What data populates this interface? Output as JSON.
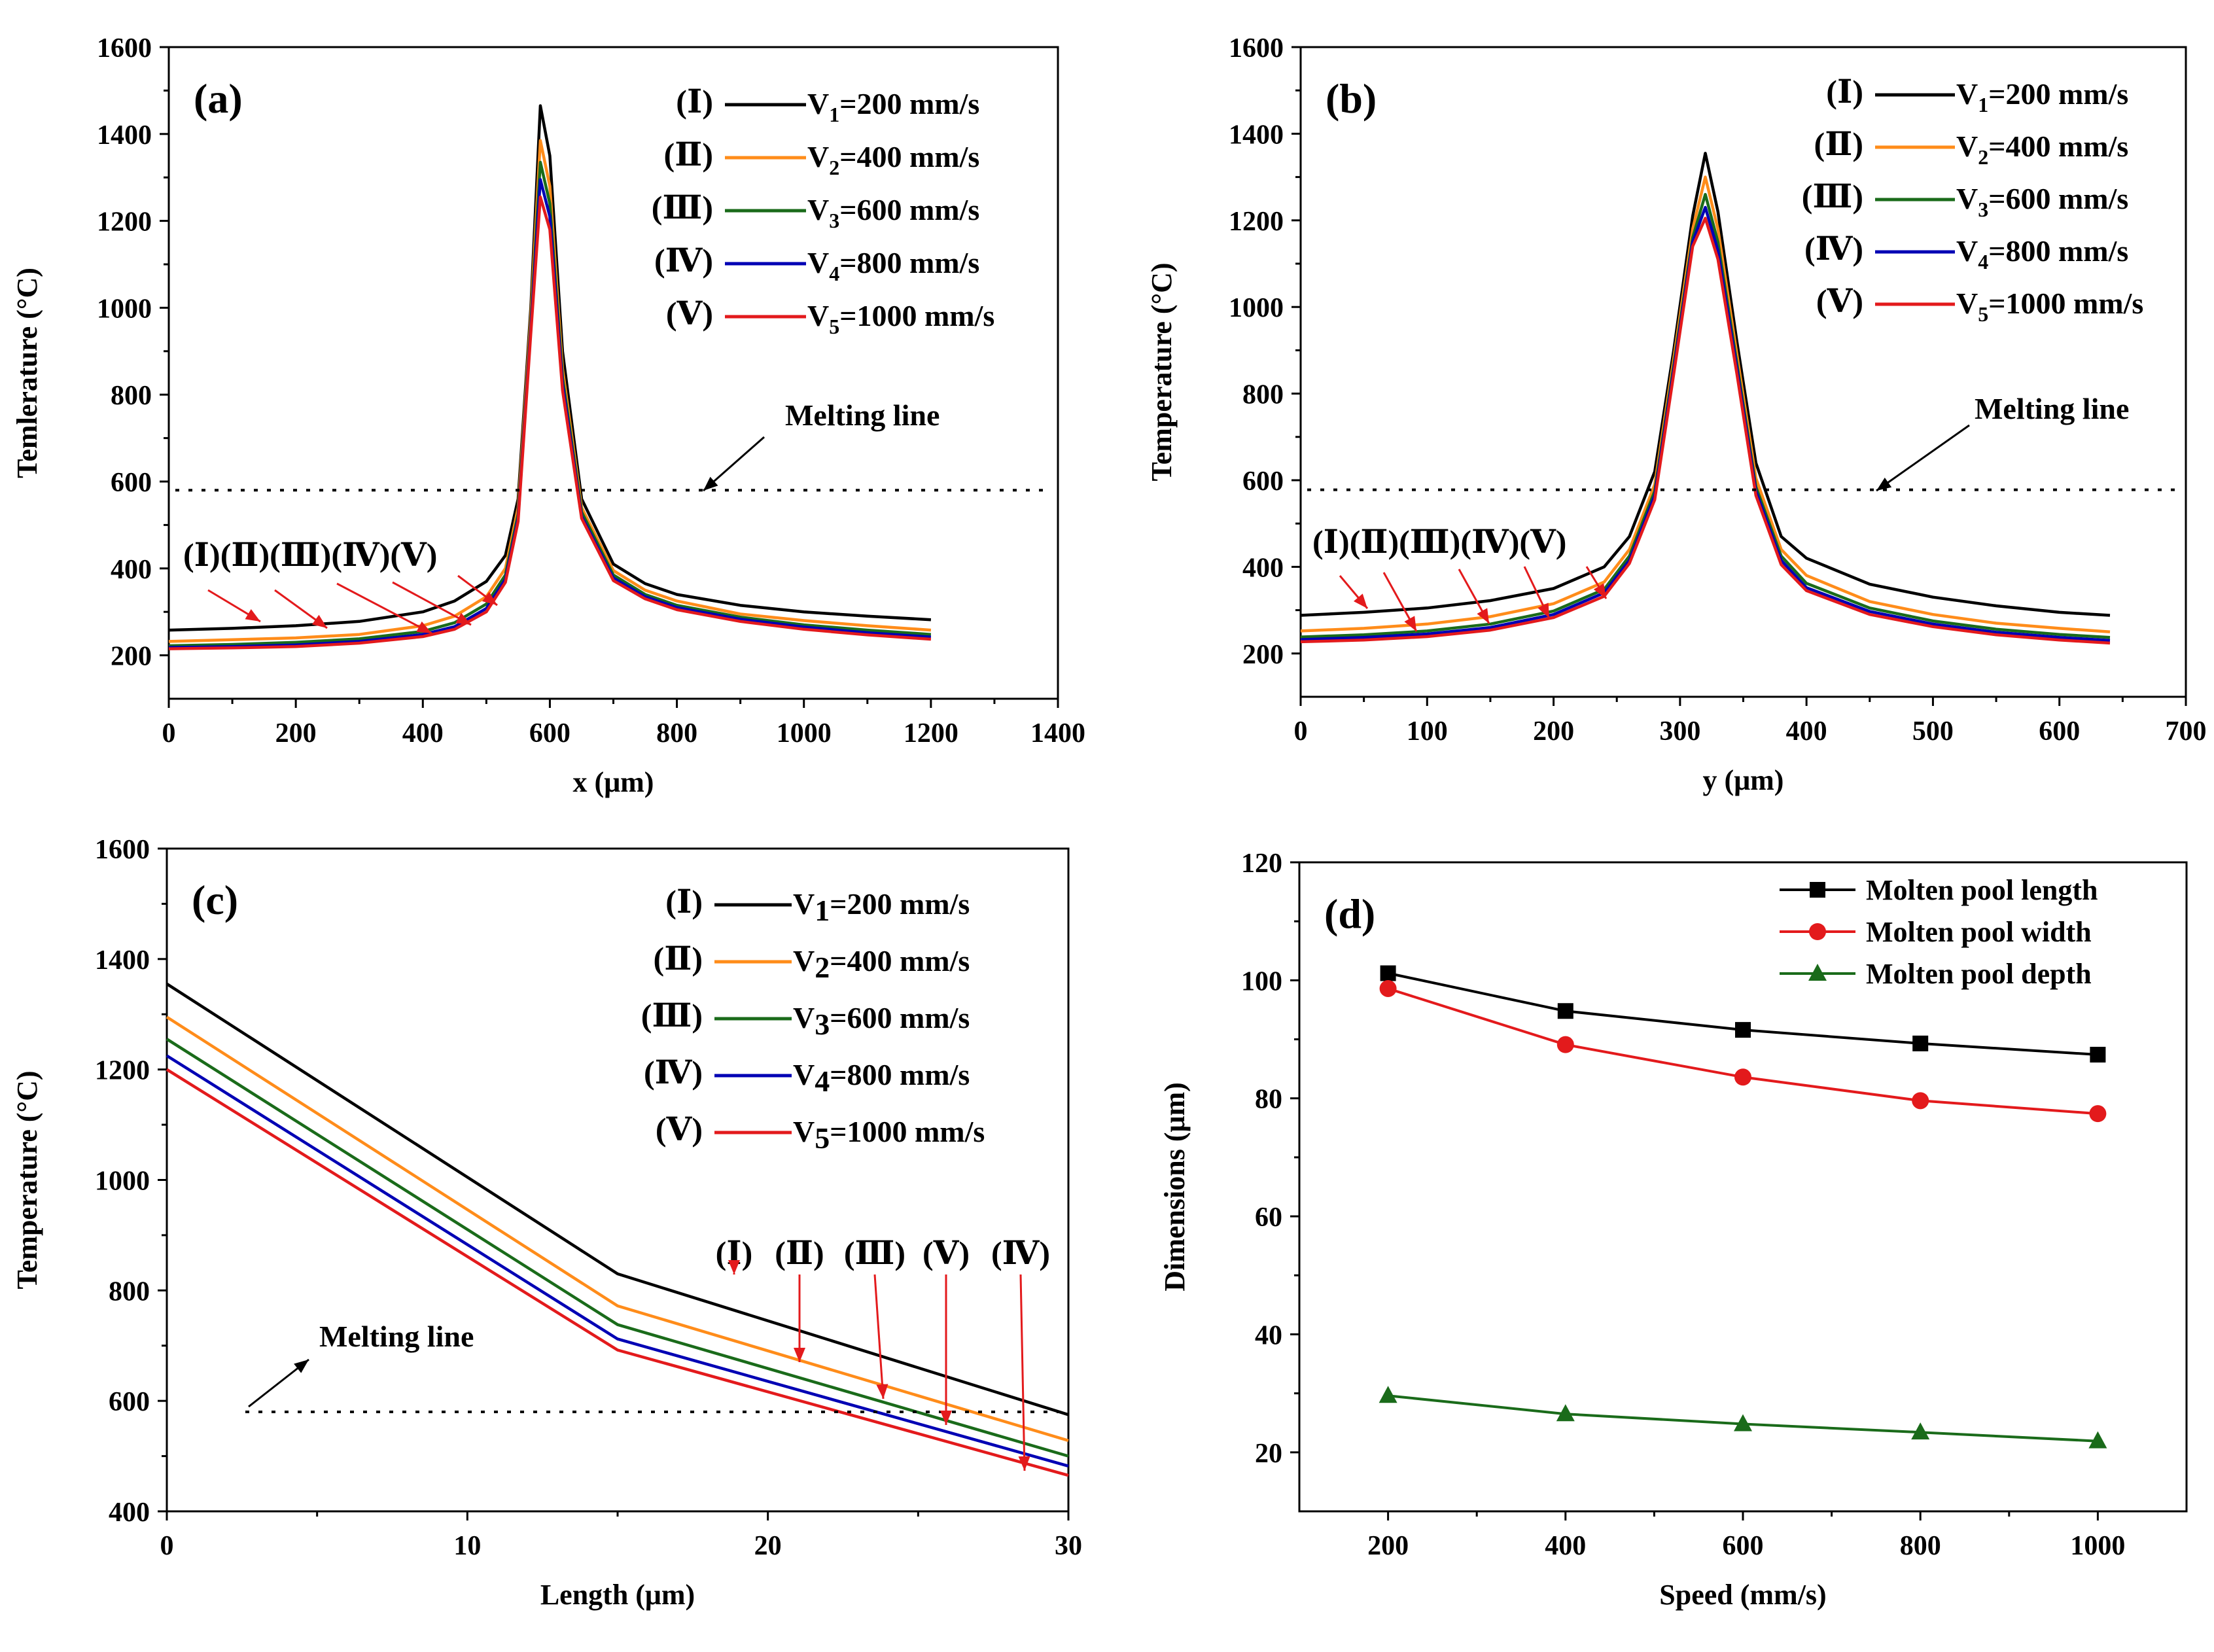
{
  "colors": {
    "V1": "#000000",
    "V2": "#ff8c1a",
    "V3": "#1a6b1a",
    "V4": "#0000b4",
    "V5": "#e31a1c",
    "annotation_arrow": "#e31a1c",
    "label_brown": "#5a1a0a",
    "length_series": "#000000",
    "width_series": "#e31a1c",
    "depth_series": "#1a6b1a"
  },
  "chart_data": [
    {
      "id": "a",
      "type": "line",
      "panel_label": "(a)",
      "xlabel": "x (μm)",
      "ylabel": "Temlerature (°C)",
      "xlim": [
        0,
        1400
      ],
      "ylim": [
        100,
        1600
      ],
      "xticks": [
        0,
        200,
        400,
        600,
        800,
        1000,
        1200,
        1400
      ],
      "yticks": [
        200,
        400,
        600,
        800,
        1000,
        1200,
        1400,
        1600
      ],
      "legend": [
        {
          "roman": "(Ⅰ)",
          "sym": "V",
          "sub": "1",
          "rest": "=200 mm/s",
          "color_key": "V1"
        },
        {
          "roman": "(Ⅱ)",
          "sym": "V",
          "sub": "2",
          "rest": "=400 mm/s",
          "color_key": "V2"
        },
        {
          "roman": "(Ⅲ)",
          "sym": "V",
          "sub": "3",
          "rest": "=600 mm/s",
          "color_key": "V3"
        },
        {
          "roman": "(Ⅳ)",
          "sym": "V",
          "sub": "4",
          "rest": "=800 mm/s",
          "color_key": "V4"
        },
        {
          "roman": "(Ⅴ)",
          "sym": "V",
          "sub": "5",
          "rest": "=1000 mm/s",
          "color_key": "V5"
        }
      ],
      "melting_line": {
        "label": "Melting line",
        "y": 580
      },
      "annotation_labels": "(Ⅰ)(Ⅱ)(Ⅲ)(Ⅳ)(Ⅴ)",
      "series": [
        {
          "color_key": "V1",
          "x": [
            0,
            100,
            200,
            300,
            400,
            450,
            500,
            530,
            550,
            570,
            585,
            600,
            620,
            650,
            700,
            750,
            800,
            900,
            1000,
            1100,
            1200
          ],
          "y": [
            258,
            262,
            268,
            278,
            300,
            325,
            370,
            430,
            560,
            1000,
            1465,
            1350,
            900,
            560,
            410,
            365,
            340,
            315,
            300,
            290,
            282
          ]
        },
        {
          "color_key": "V2",
          "x": [
            0,
            100,
            200,
            300,
            400,
            450,
            500,
            530,
            550,
            570,
            585,
            600,
            620,
            650,
            700,
            750,
            800,
            900,
            1000,
            1100,
            1200
          ],
          "y": [
            232,
            236,
            240,
            248,
            268,
            290,
            335,
            400,
            540,
            980,
            1385,
            1280,
            860,
            540,
            395,
            350,
            325,
            295,
            280,
            268,
            258
          ]
        },
        {
          "color_key": "V3",
          "x": [
            0,
            100,
            200,
            300,
            400,
            450,
            500,
            530,
            550,
            570,
            585,
            600,
            620,
            650,
            700,
            750,
            800,
            900,
            1000,
            1100,
            1200
          ],
          "y": [
            222,
            225,
            230,
            238,
            255,
            275,
            318,
            385,
            525,
            960,
            1335,
            1240,
            840,
            530,
            385,
            340,
            315,
            288,
            270,
            258,
            248
          ]
        },
        {
          "color_key": "V4",
          "x": [
            0,
            100,
            200,
            300,
            400,
            450,
            500,
            530,
            550,
            570,
            585,
            600,
            620,
            650,
            700,
            750,
            800,
            900,
            1000,
            1100,
            1200
          ],
          "y": [
            218,
            220,
            224,
            232,
            248,
            266,
            308,
            375,
            515,
            950,
            1295,
            1210,
            825,
            520,
            378,
            335,
            310,
            283,
            265,
            252,
            242
          ]
        },
        {
          "color_key": "V5",
          "x": [
            0,
            100,
            200,
            300,
            400,
            450,
            500,
            530,
            550,
            570,
            585,
            600,
            620,
            650,
            700,
            750,
            800,
            900,
            1000,
            1100,
            1200
          ],
          "y": [
            215,
            217,
            220,
            228,
            243,
            260,
            300,
            368,
            508,
            940,
            1255,
            1180,
            810,
            515,
            372,
            330,
            305,
            278,
            260,
            247,
            237
          ]
        }
      ]
    },
    {
      "id": "b",
      "type": "line",
      "panel_label": "(b)",
      "xlabel": "y (μm)",
      "ylabel": "Temperature (°C)",
      "xlim": [
        0,
        700
      ],
      "ylim": [
        100,
        1600
      ],
      "xticks": [
        0,
        100,
        200,
        300,
        400,
        500,
        600,
        700
      ],
      "yticks": [
        200,
        400,
        600,
        800,
        1000,
        1200,
        1400,
        1600
      ],
      "legend": [
        {
          "roman": "(Ⅰ)",
          "sym": "V",
          "sub": "1",
          "rest": "=200 mm/s",
          "color_key": "V1"
        },
        {
          "roman": "(Ⅱ)",
          "sym": "V",
          "sub": "2",
          "rest": "=400 mm/s",
          "color_key": "V2"
        },
        {
          "roman": "(Ⅲ)",
          "sym": "V",
          "sub": "3",
          "rest": "=600 mm/s",
          "color_key": "V3"
        },
        {
          "roman": "(Ⅳ)",
          "sym": "V",
          "sub": "4",
          "rest": "=800 mm/s",
          "color_key": "V4"
        },
        {
          "roman": "(Ⅴ)",
          "sym": "V",
          "sub": "5",
          "rest": "=1000 mm/s",
          "color_key": "V5"
        }
      ],
      "melting_line": {
        "label": "Melting line",
        "y": 578
      },
      "annotation_labels": "(Ⅰ)(Ⅱ)(Ⅲ)(Ⅳ)(Ⅴ)",
      "series": [
        {
          "color_key": "V1",
          "x": [
            0,
            50,
            100,
            150,
            200,
            240,
            260,
            280,
            295,
            310,
            320,
            330,
            345,
            360,
            380,
            400,
            450,
            500,
            550,
            600,
            640
          ],
          "y": [
            288,
            295,
            305,
            322,
            350,
            400,
            470,
            620,
            900,
            1210,
            1355,
            1220,
            920,
            640,
            470,
            420,
            360,
            330,
            310,
            295,
            288
          ]
        },
        {
          "color_key": "V2",
          "x": [
            0,
            50,
            100,
            150,
            200,
            240,
            260,
            280,
            295,
            310,
            320,
            330,
            345,
            360,
            380,
            400,
            450,
            500,
            550,
            600,
            640
          ],
          "y": [
            252,
            258,
            268,
            285,
            315,
            365,
            440,
            590,
            880,
            1180,
            1300,
            1180,
            890,
            605,
            440,
            380,
            320,
            290,
            270,
            258,
            250
          ]
        },
        {
          "color_key": "V3",
          "x": [
            0,
            50,
            100,
            150,
            200,
            240,
            260,
            280,
            295,
            310,
            320,
            330,
            345,
            360,
            380,
            400,
            450,
            500,
            550,
            600,
            640
          ],
          "y": [
            238,
            243,
            252,
            268,
            298,
            348,
            425,
            575,
            865,
            1160,
            1260,
            1150,
            870,
            585,
            425,
            362,
            305,
            275,
            256,
            244,
            237
          ]
        },
        {
          "color_key": "V4",
          "x": [
            0,
            50,
            100,
            150,
            200,
            240,
            260,
            280,
            295,
            310,
            320,
            330,
            345,
            360,
            380,
            400,
            450,
            500,
            550,
            600,
            640
          ],
          "y": [
            232,
            237,
            245,
            260,
            290,
            340,
            415,
            565,
            855,
            1150,
            1230,
            1130,
            858,
            575,
            415,
            352,
            297,
            268,
            249,
            237,
            230
          ]
        },
        {
          "color_key": "V5",
          "x": [
            0,
            50,
            100,
            150,
            200,
            240,
            260,
            280,
            295,
            310,
            320,
            330,
            345,
            360,
            380,
            400,
            450,
            500,
            550,
            600,
            640
          ],
          "y": [
            227,
            231,
            239,
            254,
            283,
            332,
            408,
            555,
            845,
            1140,
            1205,
            1110,
            845,
            565,
            405,
            345,
            290,
            262,
            243,
            231,
            224
          ]
        }
      ]
    },
    {
      "id": "c",
      "type": "line",
      "panel_label": "(c)",
      "xlabel": "Length (μm)",
      "ylabel": "Temperature (°C)",
      "xlim": [
        0,
        30
      ],
      "ylim": [
        400,
        1600
      ],
      "xticks": [
        0,
        10,
        20,
        30
      ],
      "yticks": [
        400,
        600,
        800,
        1000,
        1200,
        1400,
        1600
      ],
      "legend": [
        {
          "roman": "(Ⅰ)",
          "sym": "V",
          "sub": "1",
          "rest": "=200 mm/s",
          "color_key": "V1"
        },
        {
          "roman": "(Ⅱ)",
          "sym": "V",
          "sub": "2",
          "rest": "=400 mm/s",
          "color_key": "V2"
        },
        {
          "roman": "(Ⅲ)",
          "sym": "V",
          "sub": "3",
          "rest": "=600 mm/s",
          "color_key": "V3"
        },
        {
          "roman": "(Ⅳ)",
          "sym": "V",
          "sub": "4",
          "rest": "=800 mm/s",
          "color_key": "V4"
        },
        {
          "roman": "(Ⅴ)",
          "sym": "V",
          "sub": "5",
          "rest": "=1000 mm/s",
          "color_key": "V5"
        }
      ],
      "melting_line": {
        "label": "Melting line",
        "y": 580
      },
      "annotation_labels": [
        "(Ⅰ)",
        "(Ⅱ)",
        "(Ⅲ)",
        "(Ⅴ)",
        "(Ⅳ)"
      ],
      "series": [
        {
          "color_key": "V1",
          "x": [
            0,
            15,
            30
          ],
          "y": [
            1355,
            830,
            575
          ]
        },
        {
          "color_key": "V2",
          "x": [
            0,
            15,
            30
          ],
          "y": [
            1295,
            772,
            528
          ]
        },
        {
          "color_key": "V3",
          "x": [
            0,
            15,
            30
          ],
          "y": [
            1255,
            738,
            500
          ]
        },
        {
          "color_key": "V4",
          "x": [
            0,
            15,
            30
          ],
          "y": [
            1225,
            712,
            482
          ]
        },
        {
          "color_key": "V5",
          "x": [
            0,
            15,
            30
          ],
          "y": [
            1200,
            692,
            465
          ]
        }
      ]
    },
    {
      "id": "d",
      "type": "line",
      "panel_label": "(d)",
      "xlabel": "Speed (mm/s)",
      "ylabel": "Dimensions (μm)",
      "xlim": [
        100,
        1100
      ],
      "ylim": [
        10,
        120
      ],
      "xticks": [
        200,
        400,
        600,
        800,
        1000
      ],
      "yticks": [
        20,
        40,
        60,
        80,
        100,
        120
      ],
      "x": [
        200,
        400,
        600,
        800,
        1000
      ],
      "series": [
        {
          "name": "Molten pool length",
          "color_key": "length_series",
          "marker": "square",
          "values": [
            101.2,
            94.8,
            91.6,
            89.3,
            87.4
          ]
        },
        {
          "name": "Molten pool width",
          "color_key": "width_series",
          "marker": "circle",
          "values": [
            98.6,
            89.1,
            83.6,
            79.6,
            77.4
          ]
        },
        {
          "name": "Molten pool depth",
          "color_key": "depth_series",
          "marker": "triangle",
          "values": [
            29.6,
            26.5,
            24.8,
            23.4,
            21.9
          ]
        }
      ]
    }
  ]
}
